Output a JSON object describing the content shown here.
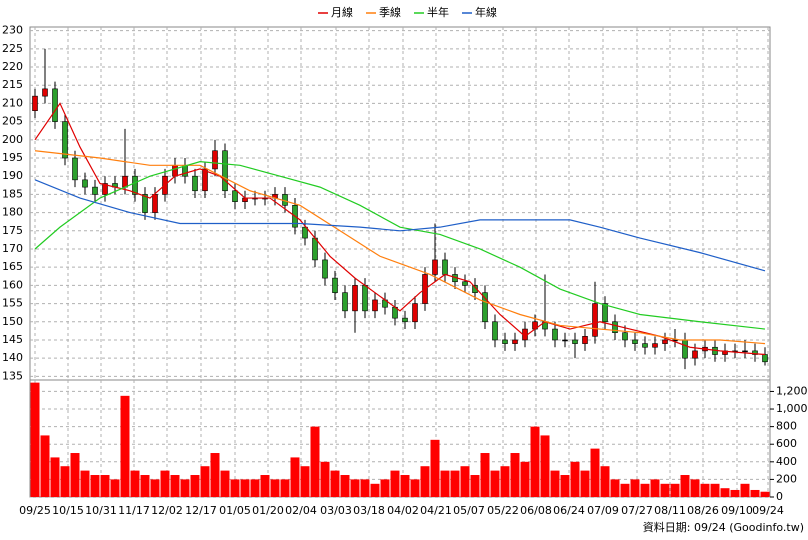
{
  "chart_data": [
    {
      "type": "candlestick",
      "xlim": [
        -0.5,
        73.5
      ],
      "ylim": [
        134,
        231
      ],
      "yticks": [
        135,
        140,
        145,
        150,
        155,
        160,
        165,
        170,
        175,
        180,
        185,
        190,
        195,
        200,
        205,
        210,
        215,
        220,
        225,
        230
      ],
      "grid": true,
      "up_color": "#e00000",
      "down_color": "#2ca02c",
      "open": [
        208,
        212,
        214,
        205,
        195,
        189,
        187,
        185,
        188,
        187,
        190,
        185,
        180,
        185,
        190,
        193,
        190,
        186,
        192,
        197,
        186,
        183,
        184,
        184,
        184,
        185,
        182,
        176,
        173,
        167,
        162,
        158,
        153,
        160,
        153,
        156,
        154,
        151,
        150,
        155,
        163,
        167,
        163,
        161,
        160,
        158,
        150,
        145,
        144,
        145,
        148,
        150,
        148,
        145,
        145,
        144,
        146,
        155,
        150,
        147,
        145,
        144,
        143,
        144,
        145,
        145,
        140,
        142,
        143,
        141,
        142,
        142,
        142,
        141
      ],
      "high": [
        214,
        225,
        216,
        207,
        197,
        191,
        189,
        190,
        190,
        203,
        192,
        187,
        187,
        192,
        195,
        195,
        192,
        194,
        200,
        199,
        188,
        186,
        186,
        186,
        187,
        187,
        184,
        178,
        175,
        169,
        164,
        160,
        162,
        162,
        158,
        158,
        156,
        153,
        157,
        165,
        177,
        169,
        165,
        163,
        162,
        160,
        152,
        147,
        147,
        150,
        152,
        163,
        150,
        147,
        147,
        148,
        161,
        157,
        152,
        149,
        147,
        146,
        146,
        147,
        148,
        147,
        144,
        145,
        145,
        144,
        144,
        145,
        144,
        143
      ],
      "low": [
        206,
        210,
        203,
        193,
        187,
        185,
        183,
        183,
        185,
        185,
        183,
        178,
        178,
        183,
        188,
        188,
        184,
        184,
        190,
        184,
        181,
        181,
        182,
        182,
        182,
        180,
        174,
        171,
        165,
        160,
        156,
        151,
        147,
        151,
        151,
        152,
        149,
        148,
        148,
        153,
        161,
        161,
        159,
        158,
        156,
        148,
        143,
        142,
        142,
        143,
        146,
        146,
        143,
        143,
        140,
        142,
        144,
        148,
        145,
        143,
        142,
        141,
        141,
        142,
        143,
        137,
        138,
        140,
        139,
        139,
        140,
        140,
        139,
        138
      ],
      "close": [
        212,
        214,
        205,
        195,
        189,
        187,
        185,
        188,
        187,
        190,
        185,
        180,
        185,
        190,
        193,
        190,
        186,
        192,
        197,
        186,
        183,
        184,
        184,
        184,
        185,
        182,
        176,
        173,
        167,
        162,
        158,
        153,
        160,
        153,
        156,
        154,
        151,
        150,
        155,
        163,
        167,
        163,
        161,
        160,
        158,
        150,
        145,
        144,
        145,
        148,
        150,
        148,
        145,
        145,
        144,
        146,
        155,
        150,
        147,
        145,
        144,
        143,
        144,
        145,
        145,
        140,
        142,
        143,
        141,
        142,
        142,
        142,
        141,
        139
      ],
      "series": [
        {
          "name": "月線",
          "color": "#e00000",
          "x": [
            0,
            2.5,
            4.5,
            6.5,
            9.5,
            11.5,
            14,
            16.5,
            18.5,
            21,
            23.5,
            26.5,
            29.5,
            32,
            34.5,
            36.5,
            38.5,
            41,
            43.5,
            46.5,
            49,
            51,
            53.5,
            56.5,
            59.5,
            62.5,
            65.5,
            68.5,
            73
          ],
          "values": [
            200,
            210,
            198,
            188,
            186,
            184,
            190,
            192,
            190,
            184,
            184,
            178,
            168,
            162,
            157,
            153,
            158,
            163,
            161,
            152,
            146,
            150,
            148,
            150,
            148,
            146,
            143,
            142,
            141
          ]
        },
        {
          "name": "季線",
          "color": "#ff7f0e",
          "x": [
            0,
            6.5,
            11.5,
            16.5,
            21.5,
            26.5,
            30.5,
            34.5,
            39.5,
            44.5,
            48.5,
            52.5,
            56.5,
            60.5,
            64.5,
            68.5,
            73
          ],
          "values": [
            197,
            195,
            193,
            193,
            186,
            182,
            175,
            168,
            163,
            156,
            152,
            149,
            148,
            147,
            145,
            145,
            144
          ]
        },
        {
          "name": "半年",
          "color": "#22cc22",
          "x": [
            0,
            2.5,
            6.5,
            11.5,
            16.5,
            20.5,
            24.5,
            28.5,
            32.5,
            36.5,
            40.5,
            44.5,
            48.5,
            52.5,
            56.5,
            60.5,
            66.5,
            73
          ],
          "values": [
            170,
            176,
            184,
            190,
            194,
            193,
            190,
            187,
            182,
            176,
            174,
            170,
            165,
            159,
            155,
            152,
            150,
            148
          ]
        },
        {
          "name": "年線",
          "color": "#1f5fc8",
          "x": [
            0,
            4.5,
            9.5,
            14.5,
            20.5,
            26.5,
            32.5,
            36.5,
            40.5,
            44.5,
            50.5,
            53.5,
            56.5,
            60.5,
            66.5,
            73
          ],
          "values": [
            189,
            184,
            180,
            177,
            177,
            177,
            176,
            175,
            176,
            178,
            178,
            178,
            176,
            173,
            169,
            164
          ]
        }
      ]
    },
    {
      "type": "bar",
      "xlim": [
        -0.5,
        73.5
      ],
      "ylim": [
        0,
        1330
      ],
      "color": "#ff0000",
      "values": [
        1300,
        700,
        450,
        350,
        500,
        300,
        250,
        250,
        200,
        1150,
        300,
        250,
        200,
        300,
        250,
        200,
        250,
        350,
        500,
        300,
        200,
        200,
        200,
        250,
        200,
        200,
        450,
        350,
        800,
        400,
        300,
        250,
        200,
        200,
        150,
        200,
        300,
        250,
        200,
        350,
        650,
        300,
        300,
        350,
        250,
        500,
        300,
        350,
        500,
        400,
        800,
        700,
        300,
        250,
        400,
        300,
        550,
        350,
        200,
        150,
        200,
        150,
        200,
        150,
        150,
        250,
        200,
        150,
        150,
        100,
        80,
        150,
        80,
        60
      ],
      "yticks": [
        0,
        200,
        400,
        600,
        800,
        {
          "value": 1000,
          "label": "1,000"
        },
        {
          "value": 1200,
          "label": "1,200"
        }
      ],
      "xticks": [
        {
          "value": 0,
          "label": "09/25"
        },
        {
          "value": 3.3,
          "label": "10/15"
        },
        {
          "value": 6.6,
          "label": "10/31"
        },
        {
          "value": 9.9,
          "label": "11/17"
        },
        {
          "value": 13.2,
          "label": "12/02"
        },
        {
          "value": 16.6,
          "label": "12/17"
        },
        {
          "value": 20,
          "label": "01/05"
        },
        {
          "value": 23.3,
          "label": "01/20"
        },
        {
          "value": 26.6,
          "label": "02/04"
        },
        {
          "value": 30.1,
          "label": "03/03"
        },
        {
          "value": 33.4,
          "label": "03/18"
        },
        {
          "value": 36.8,
          "label": "04/02"
        },
        {
          "value": 40.1,
          "label": "04/21"
        },
        {
          "value": 43.4,
          "label": "05/07"
        },
        {
          "value": 46.8,
          "label": "05/22"
        },
        {
          "value": 50.1,
          "label": "06/08"
        },
        {
          "value": 53.4,
          "label": "06/24"
        },
        {
          "value": 56.8,
          "label": "07/09"
        },
        {
          "value": 60.2,
          "label": "07/27"
        },
        {
          "value": 63.5,
          "label": "08/11"
        },
        {
          "value": 66.8,
          "label": "08/26"
        },
        {
          "value": 70.2,
          "label": "09/10"
        },
        {
          "value": 73.3,
          "label": "09/24"
        }
      ],
      "grid": true
    }
  ],
  "source": "資料日期: 09/24 (Goodinfo.tw)"
}
